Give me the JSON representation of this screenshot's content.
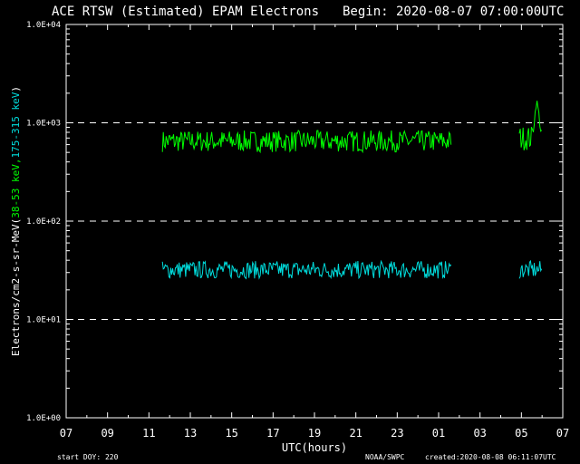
{
  "chart_data": {
    "type": "line",
    "title_left": "ACE RTSW (Estimated) EPAM Electrons",
    "title_right": "Begin: 2020-08-07 07:00:00UTC",
    "xlabel": "UTC(hours)",
    "ylabel_prefix": "Electrons/cm2-s-sr-MeV",
    "ylabel_open": "(",
    "ylabel_series1": "38-53 keV,",
    "ylabel_series2": "175-315 keV",
    "ylabel_close": ")",
    "y_scale": "log",
    "ylim": [
      1,
      10000
    ],
    "xlim": [
      0,
      24
    ],
    "x_tick_labels": [
      "07",
      "09",
      "11",
      "13",
      "15",
      "17",
      "19",
      "21",
      "23",
      "01",
      "03",
      "05",
      "07"
    ],
    "y_tick_labels": [
      "1.0E+00",
      "1.0E+01",
      "1.0E+02",
      "1.0E+03",
      "1.0E+04"
    ],
    "dashed_gridlines_at": [
      10,
      100,
      1000
    ],
    "footer_left": "start DOY:  220",
    "footer_center": "NOAA/SWPC",
    "footer_right": "created:2020-08-08 06:11:07UTC",
    "colors": {
      "series1": "#00ff00",
      "series2": "#00dddd",
      "axes": "#ffffff",
      "background": "#000000"
    },
    "series": [
      {
        "color": "#00ff00",
        "segments": [
          {
            "x_start": 4.65,
            "x_end": 18.6,
            "base": 650,
            "spread": 0.22
          },
          {
            "x_start": 21.9,
            "x_end": 23.0,
            "base": 700,
            "spread": 0.25,
            "peaks": [
              [
                22.75,
                1700
              ]
            ]
          }
        ]
      },
      {
        "color": "#00dddd",
        "segments": [
          {
            "x_start": 4.65,
            "x_end": 18.6,
            "base": 32,
            "spread": 0.18
          },
          {
            "x_start": 21.9,
            "x_end": 23.0,
            "base": 32,
            "spread": 0.18
          }
        ]
      }
    ]
  }
}
